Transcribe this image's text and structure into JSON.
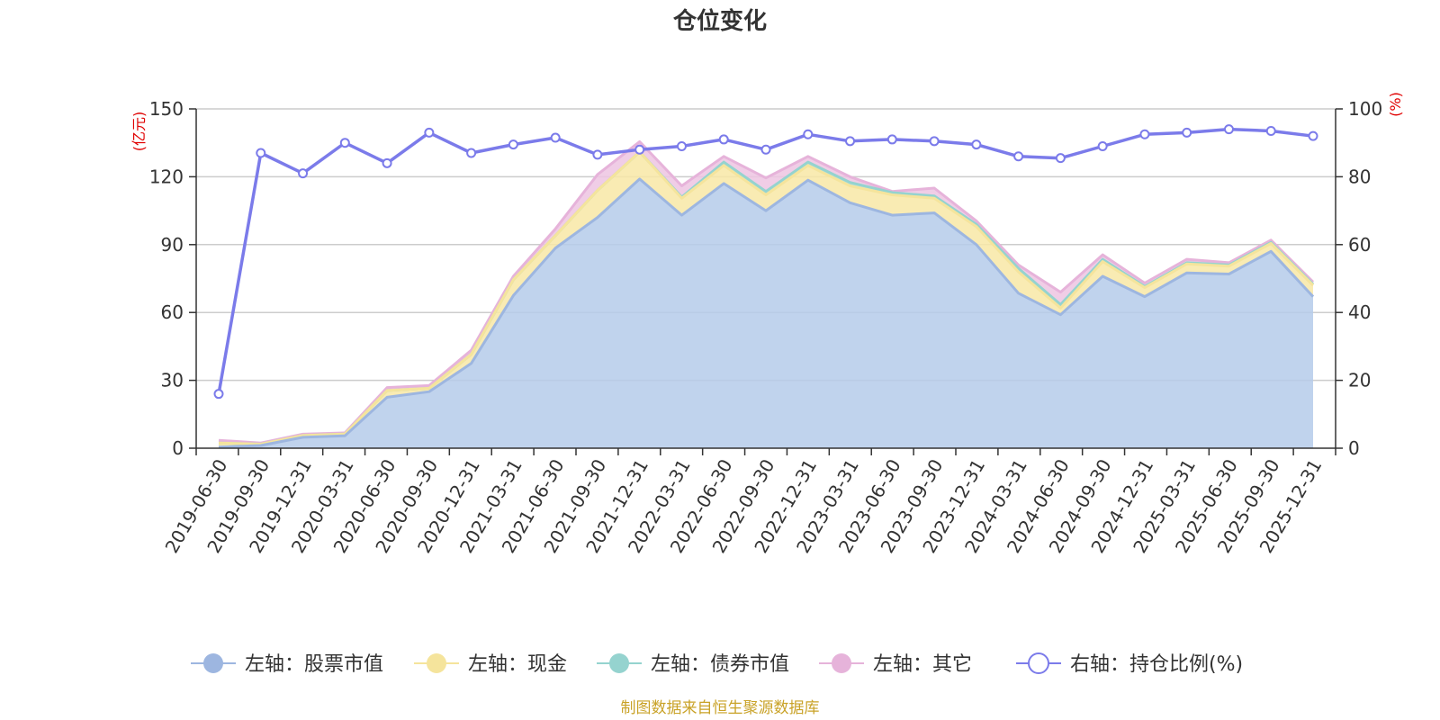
{
  "chart_data": {
    "type": "area",
    "title": "仓位变化",
    "source_note": "制图数据来自恒生聚源数据库",
    "left_axis": {
      "unit": "(亿元)",
      "ylim": [
        0,
        150
      ],
      "ticks": [
        0,
        30,
        60,
        90,
        120,
        150
      ]
    },
    "right_axis": {
      "unit": "(%)",
      "ylim": [
        0,
        100
      ],
      "ticks": [
        0,
        20,
        40,
        60,
        80,
        100
      ]
    },
    "x": [
      "2019-06-30",
      "2019-09-30",
      "2019-12-31",
      "2020-03-31",
      "2020-06-30",
      "2020-09-30",
      "2020-12-31",
      "2021-03-31",
      "2021-06-30",
      "2021-09-30",
      "2021-12-31",
      "2022-03-31",
      "2022-06-30",
      "2022-09-30",
      "2022-12-31",
      "2023-03-31",
      "2023-06-30",
      "2023-09-30",
      "2023-12-31",
      "2024-03-31",
      "2024-06-30",
      "2024-09-30",
      "2024-12-31",
      "2025-03-31",
      "2025-06-30",
      "2025-09-30",
      "2025-12-31"
    ],
    "series": [
      {
        "name": "左轴：股票市值",
        "axis": "left",
        "color": "#9db6e0",
        "fill": "#b5cbea",
        "values": [
          0.5,
          1.2,
          4.8,
          5.5,
          22.5,
          25,
          37.5,
          67.5,
          88.5,
          102,
          119,
          103,
          117,
          105,
          118.5,
          108.5,
          103,
          104,
          90,
          68.5,
          59,
          76,
          67,
          77.5,
          77,
          87,
          67
        ]
      },
      {
        "name": "左轴：现金",
        "axis": "left",
        "color": "#f5e49c",
        "fill": "#f8e8a6",
        "values": [
          1.8,
          0.6,
          0.8,
          0.8,
          3,
          1.5,
          4,
          7,
          5.5,
          12,
          12,
          7.5,
          8,
          7,
          6.5,
          7.5,
          9,
          6.5,
          8,
          9.5,
          3,
          6.5,
          4,
          4,
          3.5,
          3.5,
          5
        ]
      },
      {
        "name": "左轴：债券市值",
        "axis": "left",
        "color": "#95d3cf",
        "fill": "#a8dcd8",
        "values": [
          0,
          0,
          0,
          0,
          0,
          0,
          0,
          0,
          0,
          0,
          0,
          0.5,
          1.5,
          1.5,
          1.5,
          1.5,
          1,
          1,
          1,
          1.5,
          1.5,
          1,
          0.5,
          0.5,
          0.5,
          0.5,
          0.5
        ]
      },
      {
        "name": "左轴：其它",
        "axis": "left",
        "color": "#e6b3da",
        "fill": "#edc4e2",
        "values": [
          1.2,
          0.5,
          0.6,
          0.5,
          1.3,
          1.2,
          1.8,
          1.5,
          3,
          7,
          4.5,
          5,
          2.5,
          6,
          2.5,
          2.5,
          0.5,
          3.5,
          1.5,
          1.5,
          5.5,
          2,
          1.5,
          1.5,
          1,
          1,
          1
        ]
      },
      {
        "name": "右轴：持仓比例(%)",
        "axis": "right",
        "color": "#7b7bea",
        "values": [
          16,
          87,
          81,
          90,
          84,
          93,
          87,
          89.5,
          91.5,
          86.5,
          88,
          89,
          91,
          88,
          92.5,
          90.5,
          91,
          90.5,
          89.5,
          86,
          85.5,
          89,
          92.5,
          93,
          94,
          93.5,
          92
        ]
      }
    ],
    "legend_position": "bottom"
  }
}
